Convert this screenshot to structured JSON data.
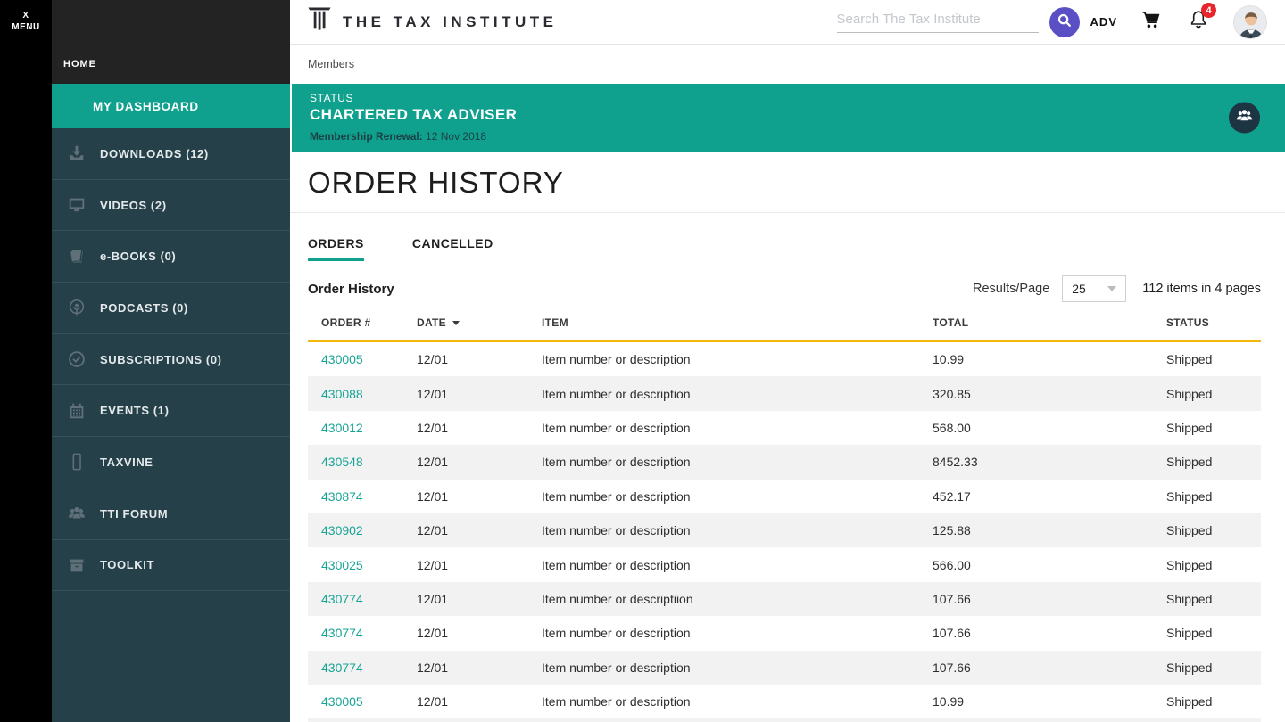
{
  "colors": {
    "teal": "#0fa18d",
    "gold": "#f2b70a",
    "purple": "#5b4fc6",
    "red": "#e8252c",
    "link": "#18a495"
  },
  "rail": {
    "menu_line1": "X",
    "menu_line2": "MENU"
  },
  "sidebar": {
    "home_label": "HOME",
    "active_item_label": "MY DASHBOARD",
    "items": [
      {
        "name": "downloads",
        "label": "DOWNLOADS (12)",
        "icon": "download-icon"
      },
      {
        "name": "videos",
        "label": "VIDEOS (2)",
        "icon": "monitor-icon"
      },
      {
        "name": "ebooks",
        "label": "e-BOOKS (0)",
        "icon": "book-icon"
      },
      {
        "name": "podcasts",
        "label": "PODCASTS (0)",
        "icon": "podcast-icon"
      },
      {
        "name": "subscriptions",
        "label": "SUBSCRIPTIONS (0)",
        "icon": "check-circle-icon"
      },
      {
        "name": "events",
        "label": "EVENTS (1)",
        "icon": "calendar-icon"
      },
      {
        "name": "taxvine",
        "label": "TAXVINE",
        "icon": "phone-icon"
      },
      {
        "name": "tti-forum",
        "label": "TTI FORUM",
        "icon": "people-icon"
      },
      {
        "name": "toolkit",
        "label": "TOOLKIT",
        "icon": "box-icon"
      }
    ]
  },
  "header": {
    "brand": "THE TAX INSTITUTE",
    "search_placeholder": "Search The Tax Institute",
    "adv_label": "ADV",
    "notification_count": "4"
  },
  "breadcrumb": "Members",
  "status_banner": {
    "kicker": "STATUS",
    "title": "CHARTERED TAX ADVISER",
    "renewal_label": "Membership Renewal:",
    "renewal_date": "12 Nov 2018"
  },
  "page": {
    "title": "ORDER HISTORY",
    "tabs": [
      {
        "label": "ORDERS",
        "active": true
      },
      {
        "label": "CANCELLED",
        "active": false
      }
    ],
    "section_title": "Order History",
    "results_per_page_label": "Results/Page",
    "results_per_page_value": "25",
    "items_summary": "112 items in 4 pages"
  },
  "table": {
    "columns": [
      "ORDER #",
      "DATE",
      "ITEM",
      "TOTAL",
      "STATUS"
    ],
    "rows": [
      [
        "430005",
        "12/01",
        "Item number or description",
        "10.99",
        "Shipped"
      ],
      [
        "430088",
        "12/01",
        "Item number or description",
        "320.85",
        "Shipped"
      ],
      [
        "430012",
        "12/01",
        "Item number or description",
        "568.00",
        "Shipped"
      ],
      [
        "430548",
        "12/01",
        "Item number or description",
        "8452.33",
        "Shipped"
      ],
      [
        "430874",
        "12/01",
        "Item number or description",
        "452.17",
        "Shipped"
      ],
      [
        "430902",
        "12/01",
        "Item number or description",
        "125.88",
        "Shipped"
      ],
      [
        "430025",
        "12/01",
        "Item number or description",
        "566.00",
        "Shipped"
      ],
      [
        "430774",
        "12/01",
        "Item number or descriptiion",
        "107.66",
        "Shipped"
      ],
      [
        "430774",
        "12/01",
        "Item number or description",
        "107.66",
        "Shipped"
      ],
      [
        "430774",
        "12/01",
        "Item number or description",
        "107.66",
        "Shipped"
      ],
      [
        "430005",
        "12/01",
        "Item number or description",
        "10.99",
        "Shipped"
      ]
    ]
  }
}
